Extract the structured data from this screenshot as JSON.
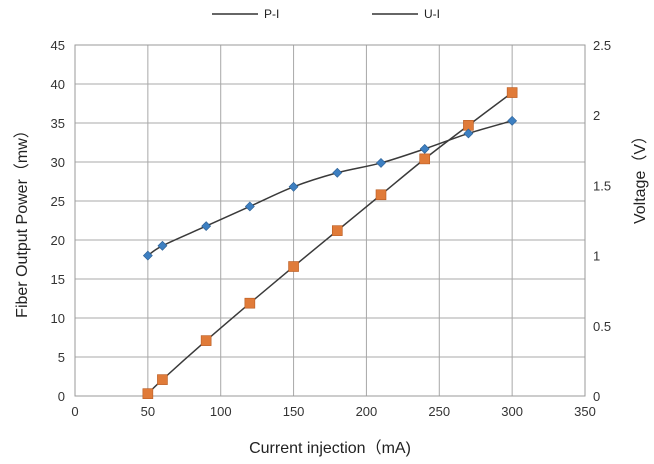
{
  "chart_data": {
    "type": "line",
    "xlabel": "Current injection（mA)",
    "ylabel_left": "Fiber Output Power（mw）",
    "ylabel_right": "Voltage（V）",
    "xlim": [
      0,
      350
    ],
    "ylim_left": [
      0,
      45
    ],
    "ylim_right": [
      0,
      2.5
    ],
    "x_ticks": [
      "0",
      "50",
      "100",
      "150",
      "200",
      "250",
      "300",
      "350"
    ],
    "y_left_ticks": [
      "0",
      "5",
      "10",
      "15",
      "20",
      "25",
      "30",
      "35",
      "40",
      "45"
    ],
    "y_right_ticks": [
      "0",
      "0.5",
      "1",
      "1.5",
      "2",
      "2.5"
    ],
    "grid": true,
    "legend_position": "top",
    "series": [
      {
        "name": "P-I",
        "axis": "left",
        "marker": "square",
        "color": "#e07b39",
        "x": [
          50,
          60,
          90,
          120,
          150,
          180,
          210,
          240,
          270,
          300
        ],
        "values": [
          0.3,
          2.1,
          7.1,
          11.9,
          16.6,
          21.2,
          25.8,
          30.4,
          34.7,
          38.9
        ]
      },
      {
        "name": "U-I",
        "axis": "right",
        "marker": "diamond",
        "color": "#3d7fc1",
        "x": [
          50,
          60,
          90,
          120,
          150,
          180,
          210,
          240,
          270,
          300
        ],
        "values": [
          1.0,
          1.07,
          1.21,
          1.35,
          1.49,
          1.59,
          1.66,
          1.76,
          1.87,
          1.96
        ]
      }
    ]
  }
}
